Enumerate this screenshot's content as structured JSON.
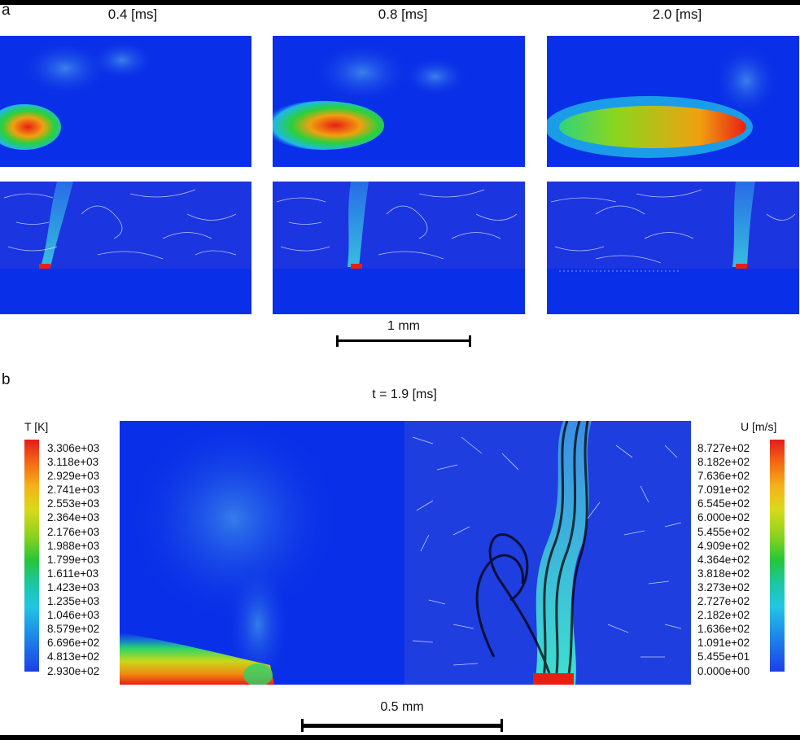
{
  "panel_a": {
    "letter": "a",
    "times": [
      "0.4 [ms]",
      "0.8 [ms]",
      "2.0 [ms]"
    ],
    "scale_label": "1 mm"
  },
  "panel_b": {
    "letter": "b",
    "time": "t = 1.9 [ms]",
    "scale_label": "0.5 mm",
    "temperature_legend": {
      "title": "T [K]",
      "ticks": [
        "3.306e+03",
        "3.118e+03",
        "2.929e+03",
        "2.741e+03",
        "2.553e+03",
        "2.364e+03",
        "2.176e+03",
        "1.988e+03",
        "1.799e+03",
        "1.611e+03",
        "1.423e+03",
        "1.235e+03",
        "1.046e+03",
        "8.579e+02",
        "6.696e+02",
        "4.813e+02",
        "2.930e+02"
      ]
    },
    "velocity_legend": {
      "title": "U [m/s]",
      "ticks": [
        "8.727e+02",
        "8.182e+02",
        "7.636e+02",
        "7.091e+02",
        "6.545e+02",
        "6.000e+02",
        "5.455e+02",
        "4.909e+02",
        "4.364e+02",
        "3.818e+02",
        "3.273e+02",
        "2.727e+02",
        "2.182e+02",
        "1.636e+02",
        "1.091e+02",
        "5.455e+01",
        "0.000e+00"
      ]
    }
  },
  "colors": {
    "background_field": "#0a2fe8",
    "hot": "#e21d1d",
    "arrow": "#ffffff"
  }
}
